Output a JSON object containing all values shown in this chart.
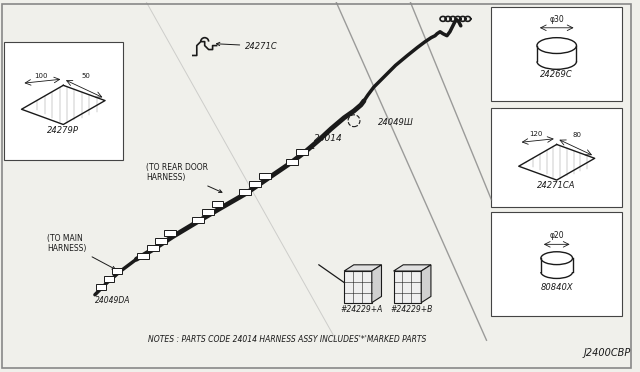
{
  "bg_color": "#f0f0eb",
  "border_color": "#444444",
  "line_color": "#1a1a1a",
  "note_text": "NOTES : PARTS CODE 24014 HARNESS ASSY INCLUDES'*'MARKED PARTS",
  "diagram_id": "J2400CBP",
  "label_24279P": "24279P",
  "label_24271C": "24271C",
  "label_24014": "24014",
  "label_24049D": "24049Ш",
  "label_24049DA": "24049DA",
  "label_24229A": "#24229+A",
  "label_24229B": "#24229+B",
  "label_24269C": "24269C",
  "label_24271CA": "24271CA",
  "label_80840X": "80840X",
  "label_to_rear": "(TO REAR DOOR\nHARNESS)",
  "label_to_main": "(TO MAIN\nHARNESS)",
  "dim_100": "100",
  "dim_50": "50",
  "dim_phi30": "φ30",
  "dim_120": "120",
  "dim_80": "80",
  "dim_phi20": "φ20"
}
